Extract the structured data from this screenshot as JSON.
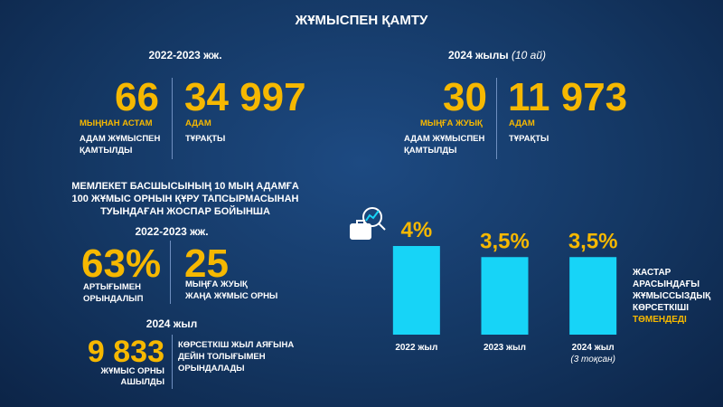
{
  "title": "ЖҰМЫСПЕН ҚАМТУ",
  "top_left": {
    "period": "2022-2023 жж.",
    "stats": [
      {
        "value": "66",
        "unit": "МЫҢНАН АСТАМ",
        "desc": [
          "АДАМ ЖҰМЫСПЕН",
          "ҚАМТЫЛДЫ"
        ]
      },
      {
        "value": "34 997",
        "unit": "АДАМ",
        "desc": [
          "ТҰРАҚТЫ"
        ]
      }
    ]
  },
  "top_right": {
    "period": "2024 жылы",
    "period_note": "(10 ай)",
    "stats": [
      {
        "value": "30",
        "unit": "МЫҢҒА ЖУЫҚ",
        "desc": [
          "АДАМ ЖҰМЫСПЕН",
          "ҚАМТЫЛДЫ"
        ]
      },
      {
        "value": "11 973",
        "unit": "АДАМ",
        "desc": [
          "ТҰРАҚТЫ"
        ]
      }
    ]
  },
  "program": {
    "heading": [
      "МЕМЛЕКЕТ БАСШЫСЫНЫҢ 10 МЫҢ АДАМҒА",
      "100 ЖҰМЫС ОРНЫН ҚҰРУ ТАПСЫРМАСЫНАН",
      "ТУЫНДАҒАН ЖОСПАР БОЙЫНША"
    ],
    "period": "2022-2023 жж.",
    "stats": [
      {
        "value": "63%",
        "desc": [
          "АРТЫҒЫМЕН",
          "ОРЫНДАЛЫП"
        ]
      },
      {
        "value": "25",
        "desc": [
          "МЫҢҒА ЖУЫҚ",
          "ЖАҢА ЖҰМЫС ОРНЫ"
        ]
      }
    ],
    "period2": "2024 жыл",
    "stat2": {
      "value": "9 833",
      "desc": [
        "ЖҰМЫС ОРНЫ",
        "АШЫЛДЫ"
      ]
    },
    "note": [
      "КӨРСЕТКІШ ЖЫЛ АЯҒЫНА",
      "ДЕЙІН ТОЛЫҒЫМЕН",
      "ОРЫНДАЛАДЫ"
    ]
  },
  "chart_data": {
    "type": "bar",
    "categories": [
      "2022 жыл",
      "2023 жыл",
      "2024 жыл"
    ],
    "category_notes": [
      null,
      null,
      "(3 тоқсан)"
    ],
    "values": [
      4,
      3.5,
      3.5
    ],
    "value_labels": [
      "4%",
      "3,5%",
      "3,5%"
    ],
    "color": "#17d4f7",
    "ylim": [
      0,
      4
    ],
    "annotation": [
      "ЖАСТАР",
      "АРАСЫНДАҒЫ",
      "ЖҰМЫССЫЗДЫҚ",
      "КӨРСЕТКІШІ"
    ],
    "annotation_emphasis": "ТӨМЕНДЕДІ"
  }
}
